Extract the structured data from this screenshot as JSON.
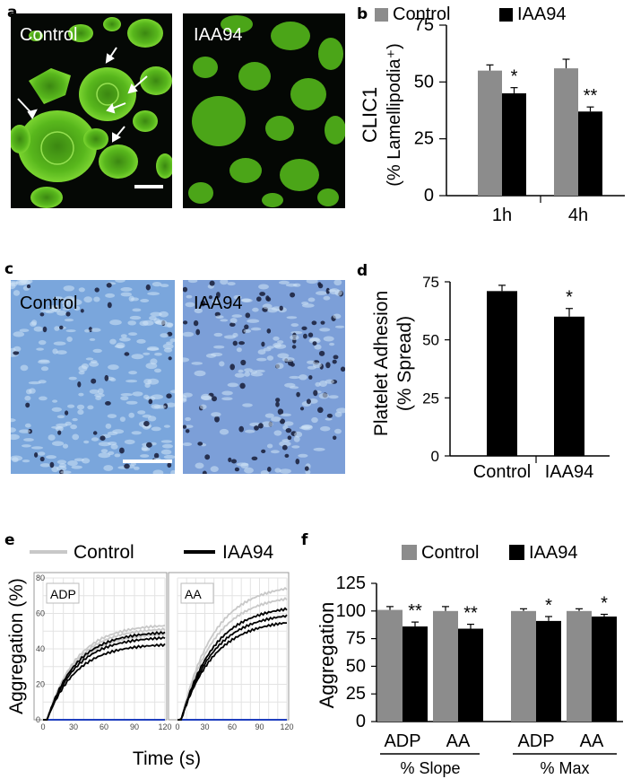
{
  "panels": {
    "a": {
      "letter": "a",
      "control_label": "Control",
      "treated_label": "IAA94"
    },
    "b": {
      "letter": "b"
    },
    "c": {
      "letter": "c",
      "control_label": "Control",
      "treated_label": "IAA94"
    },
    "d": {
      "letter": "d"
    },
    "e": {
      "letter": "e"
    },
    "f": {
      "letter": "f"
    }
  },
  "colors": {
    "control_bar": "#8c8c8c",
    "iaa94_bar": "#000000",
    "control_trace": "#c8c8c8",
    "iaa94_trace": "#000000",
    "baseline": "#1f3fbf",
    "fluor_green": "#5ec21f",
    "phase_blue": "#6f9ed6"
  },
  "chart_data": [
    {
      "id": "b",
      "type": "bar",
      "legend": [
        "Control",
        "IAA94"
      ],
      "ylabel_line1": "CLIC1",
      "ylabel_line2": "(% Lamellipodia⁺)",
      "yticks": [
        "0",
        "25",
        "50",
        "75"
      ],
      "ylim": [
        0,
        75
      ],
      "categories": [
        "1h",
        "4h"
      ],
      "series": [
        {
          "name": "Control",
          "values": [
            55,
            56
          ],
          "errors": [
            2.5,
            4
          ]
        },
        {
          "name": "IAA94",
          "values": [
            45,
            37
          ],
          "errors": [
            2.5,
            2
          ]
        }
      ],
      "annotations": [
        {
          "category": "1h",
          "series": "IAA94",
          "text": "*"
        },
        {
          "category": "4h",
          "series": "IAA94",
          "text": "**"
        }
      ]
    },
    {
      "id": "d",
      "type": "bar",
      "ylabel_line1": "Platelet Adhesion",
      "ylabel_line2": "(% Spread)",
      "yticks": [
        "0",
        "25",
        "50",
        "75"
      ],
      "ylim": [
        0,
        75
      ],
      "categories": [
        "Control",
        "IAA94"
      ],
      "values": [
        71,
        60
      ],
      "errors": [
        2.5,
        3.5
      ],
      "annotations": [
        {
          "category": "IAA94",
          "text": "*"
        }
      ]
    },
    {
      "id": "e",
      "type": "line",
      "legend": [
        "Control",
        "IAA94"
      ],
      "ylabel": "Aggregation (%)",
      "xlabel": "Time (s)",
      "subplots": [
        {
          "label": "ADP",
          "xticks": [
            "0",
            "30",
            "60",
            "90",
            "120"
          ],
          "yticks": [
            "0",
            "20",
            "40",
            "60",
            "80"
          ],
          "xlim": [
            0,
            120
          ],
          "ylim": [
            0,
            80
          ],
          "series": [
            {
              "name": "Control",
              "plateaus": [
                49,
                52,
                54
              ],
              "k": 0.035
            },
            {
              "name": "IAA94",
              "plateaus": [
                43,
                47,
                50
              ],
              "k": 0.035
            }
          ]
        },
        {
          "label": "AA",
          "xticks": [
            "0",
            "30",
            "60",
            "90",
            "120"
          ],
          "xlim": [
            0,
            120
          ],
          "ylim": [
            0,
            80
          ],
          "series": [
            {
              "name": "Control",
              "plateaus": [
                65,
                71,
                77
              ],
              "k": 0.028
            },
            {
              "name": "IAA94",
              "plateaus": [
                57,
                61,
                65
              ],
              "k": 0.028
            }
          ]
        }
      ]
    },
    {
      "id": "f",
      "type": "bar",
      "legend": [
        "Control",
        "IAA94"
      ],
      "ylabel": "Aggregation",
      "yticks": [
        "0",
        "25",
        "50",
        "75",
        "100",
        "125"
      ],
      "ylim": [
        0,
        125
      ],
      "categories": [
        "ADP",
        "AA",
        "ADP",
        "AA"
      ],
      "groups": [
        "% Slope",
        "% Max"
      ],
      "series": [
        {
          "name": "Control",
          "values": [
            101,
            100,
            100,
            100
          ],
          "errors": [
            3,
            4,
            2,
            2
          ]
        },
        {
          "name": "IAA94",
          "values": [
            86,
            84,
            91,
            95
          ],
          "errors": [
            4,
            4,
            4,
            2
          ]
        }
      ],
      "annotations": [
        {
          "index": 0,
          "text": "**"
        },
        {
          "index": 1,
          "text": "**"
        },
        {
          "index": 2,
          "text": "*"
        },
        {
          "index": 3,
          "text": "*"
        }
      ]
    }
  ]
}
